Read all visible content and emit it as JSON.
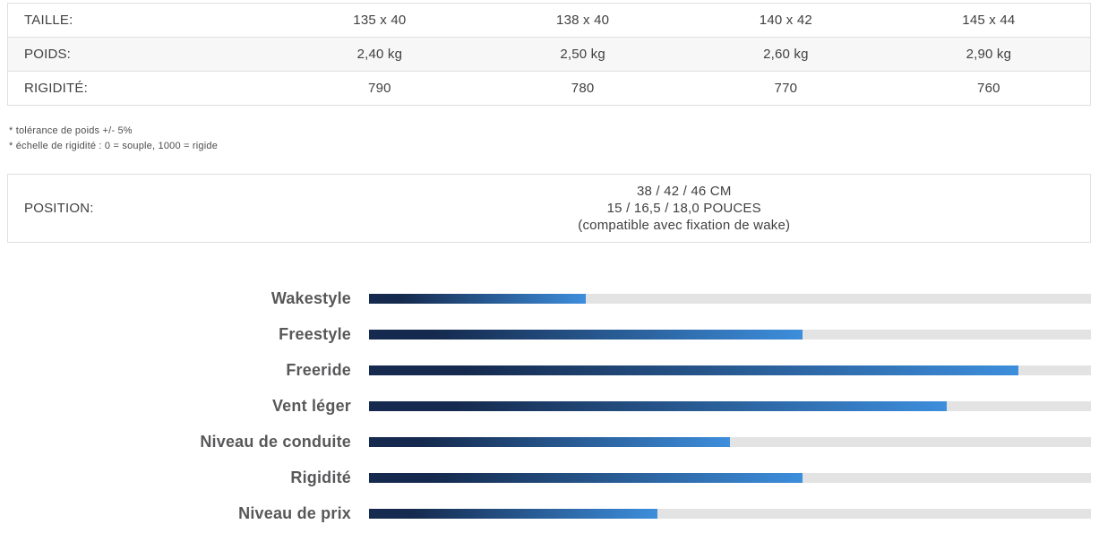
{
  "spec_table": {
    "rows": [
      {
        "label": "TAILLE:",
        "values": [
          "135 x 40",
          "138 x 40",
          "140 x 42",
          "145 x 44"
        ]
      },
      {
        "label": "POIDS:",
        "values": [
          "2,40 kg",
          "2,50 kg",
          "2,60 kg",
          "2,90 kg"
        ]
      },
      {
        "label": "RIGIDITÉ:",
        "values": [
          "790",
          "780",
          "770",
          "760"
        ]
      }
    ]
  },
  "footnotes": [
    "* tolérance de poids +/- 5%",
    "* échelle de rigidité : 0 = souple, 1000 = rigide"
  ],
  "position_table": {
    "label": "POSITION:",
    "lines": [
      "38 / 42 / 46 CM",
      "15 / 16,5 / 18,0 POUCES",
      "(compatible avec fixation de wake)"
    ]
  },
  "chart_data": {
    "type": "bar",
    "orientation": "horizontal",
    "title": "",
    "categories": [
      "Wakestyle",
      "Freestyle",
      "Freeride",
      "Vent léger",
      "Niveau de conduite",
      "Rigidité",
      "Niveau de prix"
    ],
    "values": [
      30,
      60,
      90,
      80,
      50,
      60,
      40
    ],
    "value_max": 100,
    "legend": "none",
    "grid": "off"
  },
  "colors": {
    "bar_gradient_start": "#152a4e",
    "bar_gradient_end": "#3d8edc",
    "bar_track": "#e3e3e3",
    "chart_label": "#58585a",
    "table_border": "#e0e0e0",
    "alt_row_bg": "#f7f7f7"
  }
}
